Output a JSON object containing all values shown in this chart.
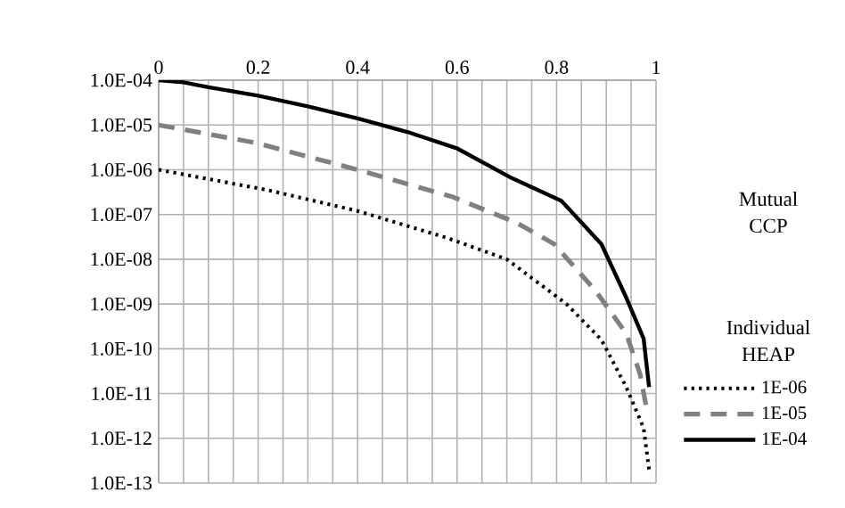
{
  "chart_data": {
    "type": "line",
    "xlabel": "Mutual CCP",
    "legend_title": "Individual HEAP",
    "log": "y",
    "grid": true,
    "legend": "right",
    "xlim": [
      0,
      1
    ],
    "xticks": [
      0,
      0.2,
      0.4,
      0.6,
      0.8,
      1
    ],
    "ylim": [
      1e-13,
      0.0001
    ],
    "yticks": [
      {
        "value": 1e-13,
        "label": "1.0E-13"
      },
      {
        "value": 1e-12,
        "label": "1.0E-12"
      },
      {
        "value": 1e-11,
        "label": "1.0E-11"
      },
      {
        "value": 1e-10,
        "label": "1.0E-10"
      },
      {
        "value": 1e-09,
        "label": "1.0E-09"
      },
      {
        "value": 1e-08,
        "label": "1.0E-08"
      },
      {
        "value": 1e-07,
        "label": "1.0E-07"
      },
      {
        "value": 1e-06,
        "label": "1.0E-06"
      },
      {
        "value": 1e-05,
        "label": "1.0E-05"
      },
      {
        "value": 0.0001,
        "label": "1.0E-04"
      }
    ],
    "series": [
      {
        "name": "1E-06",
        "color": "#000000",
        "line_style": "dotted",
        "x": [
          0,
          0.22,
          0.4,
          0.58,
          0.7,
          0.82,
          0.89,
          0.94,
          0.975,
          0.986
        ],
        "values": [
          1e-06,
          3.5e-07,
          1.2e-07,
          3e-08,
          1e-08,
          1e-09,
          1.6e-10,
          1.4e-11,
          1.7e-12,
          2e-13
        ]
      },
      {
        "name": "1E-05",
        "color": "#808080",
        "line_style": "dashed",
        "x": [
          0,
          0.195,
          0.4,
          0.59,
          0.72,
          0.795,
          0.878,
          0.94,
          0.968,
          0.982
        ],
        "values": [
          1e-05,
          4e-06,
          1e-06,
          2.5e-07,
          6.5e-08,
          2.2e-08,
          2e-09,
          2.2e-10,
          2.7e-11,
          4e-12
        ]
      },
      {
        "name": "1E-04",
        "color": "#000000",
        "line_style": "solid",
        "x": [
          0,
          0.05,
          0.1,
          0.2,
          0.3,
          0.4,
          0.5,
          0.6,
          0.71,
          0.81,
          0.89,
          0.94,
          0.975,
          0.986
        ],
        "values": [
          0.0001,
          9e-05,
          7e-05,
          4.5e-05,
          2.6e-05,
          1.4e-05,
          7e-06,
          3e-06,
          6.5e-07,
          2e-07,
          2.2e-08,
          1.4e-09,
          1.7e-10,
          1.4e-11
        ]
      }
    ]
  }
}
